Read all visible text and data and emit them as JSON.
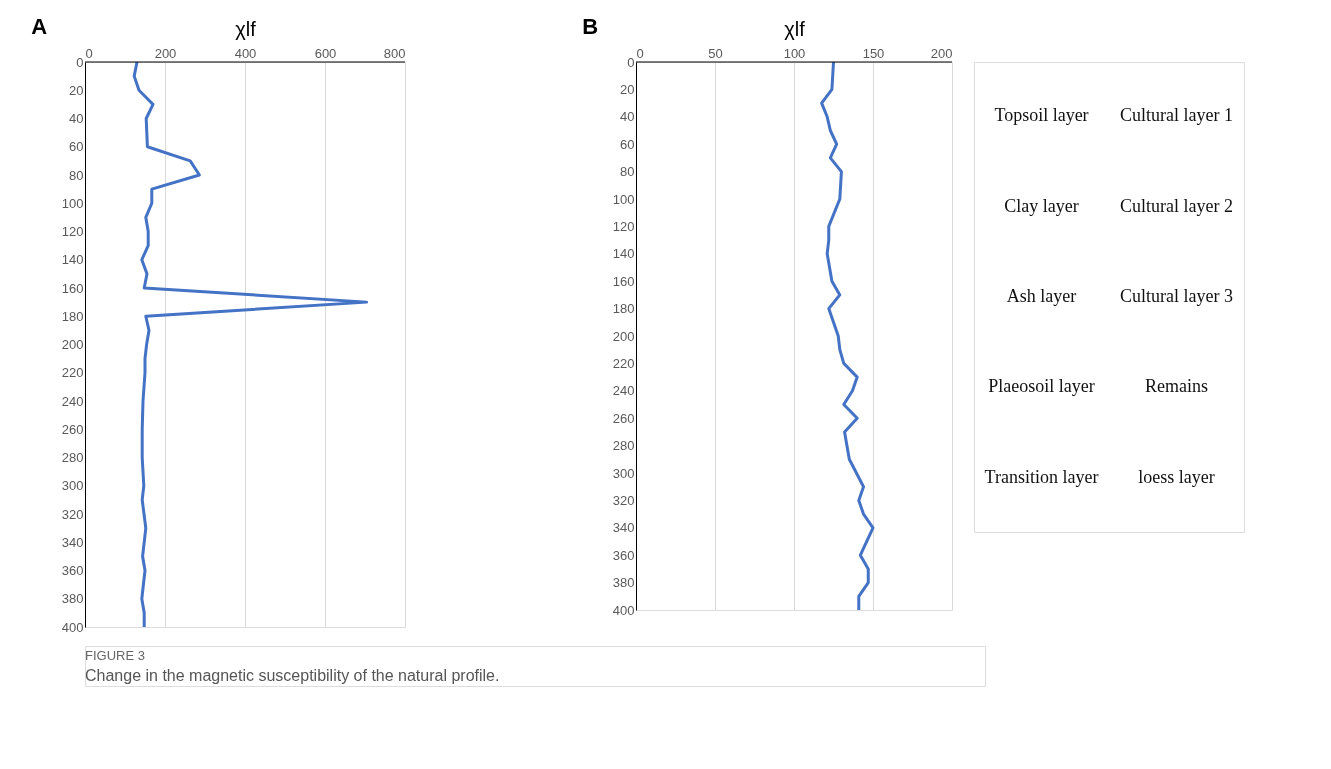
{
  "chart_data": [
    {
      "type": "line",
      "title": "A",
      "xlabel": "χlf",
      "orientation": "horizontal",
      "xlim": [
        0,
        800
      ],
      "xticks": [
        0,
        200,
        400,
        600,
        800
      ],
      "ylim": [
        400,
        0
      ],
      "yticks": [
        0,
        20,
        40,
        60,
        80,
        100,
        120,
        140,
        160,
        180,
        200,
        220,
        240,
        260,
        280,
        300,
        320,
        340,
        360,
        380,
        400
      ],
      "grid": "x",
      "line_style": "solid",
      "marker": "none",
      "series": [
        {
          "color": "#4472c4",
          "x": [
            0,
            10,
            20,
            30,
            40,
            60,
            70,
            80,
            90,
            100,
            110,
            120,
            130,
            140,
            150,
            160,
            170,
            180,
            190,
            200,
            210,
            220,
            240,
            260,
            280,
            300,
            310,
            330,
            350,
            360,
            380,
            390,
            400
          ],
          "values": [
            130,
            123,
            135,
            170,
            153,
            156,
            263,
            286,
            167,
            167,
            152,
            158,
            158,
            142,
            155,
            148,
            704,
            152,
            160,
            154,
            150,
            150,
            145,
            143,
            143,
            147,
            143,
            152,
            144,
            150,
            142,
            148,
            148
          ]
        }
      ]
    },
    {
      "type": "line",
      "title": "B",
      "xlabel": "χlf",
      "orientation": "horizontal",
      "xlim": [
        0,
        200
      ],
      "xticks": [
        0,
        50,
        100,
        150,
        200
      ],
      "ylim": [
        400,
        0
      ],
      "yticks": [
        0,
        20,
        40,
        60,
        80,
        100,
        120,
        140,
        160,
        180,
        200,
        220,
        240,
        260,
        280,
        300,
        320,
        340,
        360,
        380,
        400
      ],
      "grid": "x",
      "line_style": "solid",
      "marker": "none",
      "series": [
        {
          "color": "#4472c4",
          "x": [
            0,
            20,
            30,
            40,
            50,
            60,
            70,
            80,
            100,
            120,
            130,
            140,
            160,
            170,
            180,
            200,
            210,
            220,
            230,
            240,
            250,
            260,
            270,
            290,
            310,
            320,
            330,
            340,
            360,
            370,
            380,
            390,
            400
          ],
          "values": [
            125,
            124,
            117.5,
            121,
            123,
            127,
            123,
            130,
            129,
            122,
            122,
            121,
            124,
            129,
            122,
            128,
            129,
            131.5,
            140,
            137,
            131.5,
            140,
            132,
            135,
            144,
            141,
            144,
            150,
            142,
            147,
            147,
            141,
            141
          ]
        }
      ]
    },
    {
      "type": "other",
      "annotations": [
        "Topsoil layer",
        "Cultural layer 1",
        "Clay layer",
        "Cultural layer 2",
        "Ash layer",
        "Cultural layer 3",
        "Plaeosoil layer",
        "Remains",
        "Transition layer",
        "loess layer"
      ]
    },
    {
      "type": "other",
      "annotations": [
        "FIGURE 3",
        "Change in the magnetic susceptibility of the natural profile."
      ]
    }
  ]
}
